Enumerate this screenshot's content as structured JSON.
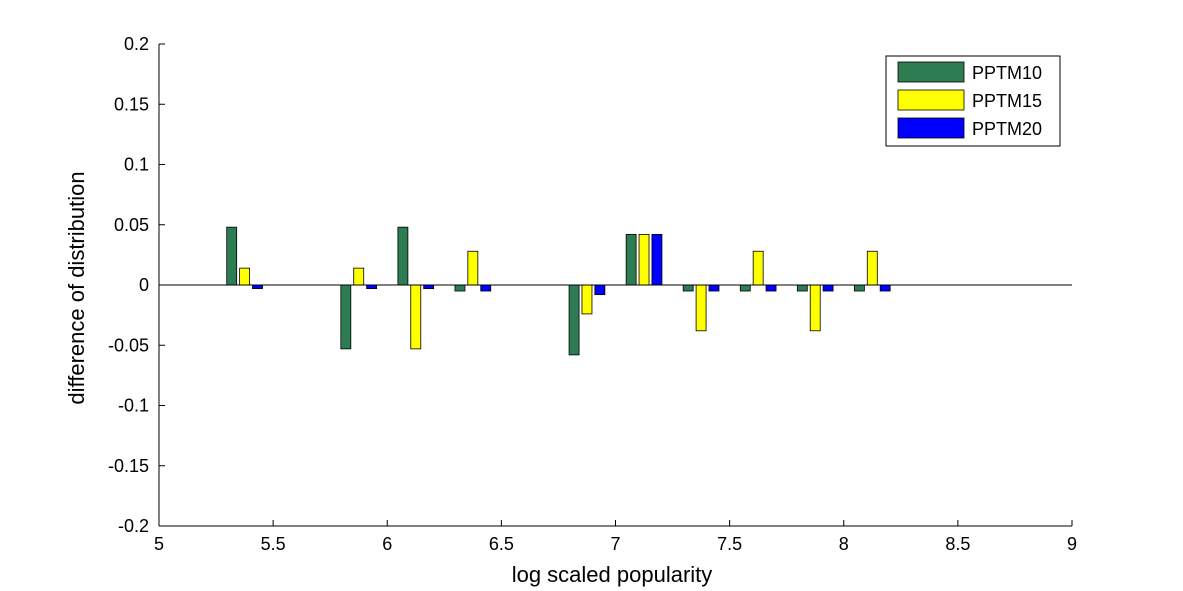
{
  "chart_data": {
    "type": "bar",
    "title": "",
    "xlabel": "log scaled popularity",
    "ylabel": "difference of distribution",
    "xlim": [
      5,
      9
    ],
    "ylim": [
      -0.2,
      0.2
    ],
    "xticks": [
      "5",
      "5.5",
      "6",
      "6.5",
      "7",
      "7.5",
      "8",
      "8.5",
      "9"
    ],
    "xtick_values": [
      5,
      5.5,
      6,
      6.5,
      7,
      7.5,
      8,
      8.5,
      9
    ],
    "yticks": [
      "-0.2",
      "-0.15",
      "-0.1",
      "-0.05",
      "0",
      "0.05",
      "0.1",
      "0.15",
      "0.2"
    ],
    "ytick_values": [
      -0.2,
      -0.15,
      -0.1,
      -0.05,
      0,
      0.05,
      0.1,
      0.15,
      0.2
    ],
    "grid": false,
    "legend_position": "top-right",
    "x": [
      5.375,
      5.875,
      6.125,
      6.375,
      6.875,
      7.125,
      7.375,
      7.625,
      7.875,
      8.125
    ],
    "series": [
      {
        "name": "PPTM10",
        "color": "#2e7d52",
        "values": [
          0.048,
          -0.053,
          0.048,
          -0.005,
          -0.058,
          0.042,
          -0.005,
          -0.005,
          -0.005,
          -0.005
        ]
      },
      {
        "name": "PPTM15",
        "color": "#ffff00",
        "values": [
          0.014,
          0.014,
          -0.053,
          0.028,
          -0.024,
          0.042,
          -0.038,
          0.028,
          -0.038,
          0.028
        ]
      },
      {
        "name": "PPTM20",
        "color": "#0000ff",
        "values": [
          -0.003,
          -0.003,
          -0.003,
          -0.005,
          -0.008,
          0.042,
          -0.005,
          -0.005,
          -0.005,
          -0.005
        ]
      }
    ]
  }
}
